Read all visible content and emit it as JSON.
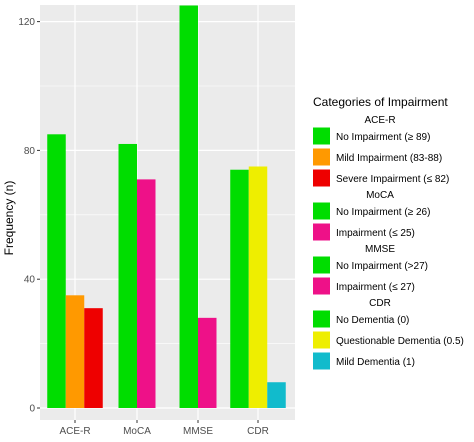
{
  "chart_data": {
    "type": "bar",
    "xlabel": "",
    "ylabel": "Frequency (n)",
    "ylim": [
      0,
      125
    ],
    "yticks": [
      0,
      40,
      80,
      120
    ],
    "grid": true,
    "legend_position": "right",
    "categories": [
      "ACE-R",
      "MoCA",
      "MMSE",
      "CDR"
    ],
    "groups": [
      {
        "name": "ACE-R",
        "bars": [
          {
            "label": "No Impairment (≥ 89)",
            "value": 85,
            "color": "#00dd00"
          },
          {
            "label": "Mild Impairment (83-88)",
            "value": 35,
            "color": "#ff9900"
          },
          {
            "label": "Severe Impairment (≤ 82)",
            "value": 31,
            "color": "#ee0000"
          }
        ]
      },
      {
        "name": "MoCA",
        "bars": [
          {
            "label": "No Impairment (≥ 26)",
            "value": 82,
            "color": "#00dd00"
          },
          {
            "label": "Impairment (≤ 25)",
            "value": 71,
            "color": "#ee1188"
          }
        ]
      },
      {
        "name": "MMSE",
        "bars": [
          {
            "label": "No Impairment (>27)",
            "value": 125,
            "color": "#00dd00"
          },
          {
            "label": "Impairment (≤ 27)",
            "value": 28,
            "color": "#ee1188"
          }
        ]
      },
      {
        "name": "CDR",
        "bars": [
          {
            "label": "No Dementia (0)",
            "value": 74,
            "color": "#00dd00"
          },
          {
            "label": "Questionable Dementia (0.5)",
            "value": 75,
            "color": "#eeee00"
          },
          {
            "label": "Mild Dementia (1)",
            "value": 8,
            "color": "#11bbcc"
          }
        ]
      }
    ],
    "legend": {
      "title": "Categories of Impairment",
      "sections": [
        {
          "heading": "ACE-R",
          "items": [
            {
              "label": "No Impairment (≥ 89)",
              "color": "#00dd00"
            },
            {
              "label": "Mild Impairment (83-88)",
              "color": "#ff9900"
            },
            {
              "label": "Severe Impairment (≤ 82)",
              "color": "#ee0000"
            }
          ]
        },
        {
          "heading": "MoCA",
          "items": [
            {
              "label": "No Impairment (≥ 26)",
              "color": "#00dd00"
            },
            {
              "label": "Impairment (≤ 25)",
              "color": "#ee1188"
            }
          ]
        },
        {
          "heading": "MMSE",
          "items": [
            {
              "label": "No Impairment (>27)",
              "color": "#00dd00"
            },
            {
              "label": "Impairment (≤ 27)",
              "color": "#ee1188"
            }
          ]
        },
        {
          "heading": "CDR",
          "items": [
            {
              "label": "No Dementia (0)",
              "color": "#00dd00"
            },
            {
              "label": "Questionable Dementia (0.5)",
              "color": "#eeee00"
            },
            {
              "label": "Mild Dementia (1)",
              "color": "#11bbcc"
            }
          ]
        }
      ]
    },
    "panel_background": "#ebebeb",
    "gridline_color": "#ffffff"
  }
}
